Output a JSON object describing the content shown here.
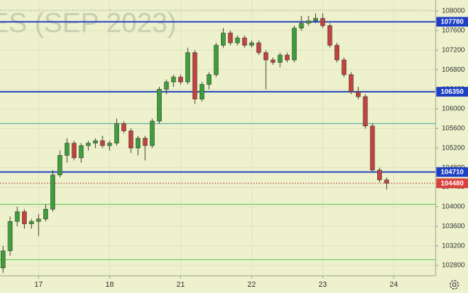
{
  "chart_data": {
    "type": "candlestick",
    "watermark": "ES (SEP 2023)",
    "x": [
      -0.5,
      -0.4,
      -0.3,
      -0.2,
      -0.1,
      0.0,
      0.1,
      0.2,
      0.3,
      0.4,
      0.5,
      0.6,
      0.7,
      0.8,
      0.9,
      1.0,
      1.1,
      1.2,
      1.3,
      1.4,
      1.5,
      1.6,
      1.7,
      1.8,
      1.9,
      2.0,
      2.1,
      2.2,
      2.3,
      2.4,
      2.5,
      2.6,
      2.7,
      2.8,
      2.9,
      3.0,
      3.1,
      3.2,
      3.3,
      3.4,
      3.5,
      3.6,
      3.7,
      3.8,
      3.9,
      4.0,
      4.1,
      4.2,
      4.3,
      4.4,
      4.5,
      4.6,
      4.7,
      4.8,
      4.9
    ],
    "open": [
      102750,
      103100,
      103700,
      103900,
      103650,
      103700,
      103750,
      103950,
      104650,
      105050,
      105300,
      105000,
      105250,
      105300,
      105350,
      105250,
      105300,
      105700,
      105550,
      105200,
      105400,
      105250,
      105750,
      106400,
      106550,
      106650,
      106550,
      107150,
      106200,
      106500,
      106700,
      107300,
      107550,
      107350,
      107450,
      107300,
      107350,
      107150,
      107000,
      106950,
      107100,
      107000,
      107650,
      107750,
      107800,
      107850,
      107700,
      107300,
      107000,
      106700,
      106350,
      106250,
      105650,
      104750,
      104550
    ],
    "high": [
      103200,
      103800,
      104000,
      103950,
      103750,
      103850,
      104050,
      104750,
      105150,
      105400,
      105350,
      105300,
      105350,
      105400,
      105450,
      105350,
      105800,
      105750,
      105600,
      105450,
      105450,
      105800,
      106450,
      106600,
      106700,
      106700,
      107250,
      107200,
      106550,
      106750,
      107350,
      107650,
      107600,
      107500,
      107500,
      107400,
      107400,
      107200,
      107050,
      107150,
      107150,
      107700,
      107900,
      107900,
      107950,
      107950,
      107750,
      107350,
      107050,
      106750,
      106450,
      106300,
      105700,
      104800,
      104600
    ],
    "low": [
      102650,
      103000,
      103600,
      103550,
      103550,
      103400,
      103700,
      103900,
      104600,
      104900,
      104950,
      104900,
      105150,
      105200,
      105200,
      105150,
      105250,
      105500,
      105100,
      105050,
      104950,
      105200,
      105700,
      106300,
      106450,
      106500,
      106500,
      106100,
      106150,
      106400,
      106650,
      107250,
      107300,
      107300,
      107250,
      107250,
      107100,
      106400,
      106900,
      106850,
      106950,
      106950,
      107600,
      107700,
      107750,
      107650,
      107250,
      106950,
      106650,
      106300,
      106200,
      105600,
      104700,
      104500,
      104350
    ],
    "close": [
      103100,
      103700,
      103900,
      103650,
      103700,
      103750,
      103950,
      104650,
      105050,
      105300,
      105000,
      105250,
      105300,
      105350,
      105250,
      105300,
      105700,
      105550,
      105200,
      105400,
      105250,
      105750,
      106400,
      106550,
      106650,
      106550,
      107150,
      106200,
      106500,
      106700,
      107300,
      107550,
      107350,
      107450,
      107300,
      107350,
      107150,
      107000,
      106950,
      107100,
      107000,
      107650,
      107750,
      107800,
      107850,
      107700,
      107300,
      107000,
      106700,
      106350,
      106250,
      105650,
      104750,
      104550,
      104480
    ],
    "up_color": "#3e9e3e",
    "down_color": "#c4423f",
    "xlim": [
      -0.543,
      5.59
    ],
    "xticks": [
      {
        "value": 0,
        "label": "17"
      },
      {
        "value": 1,
        "label": "18"
      },
      {
        "value": 2,
        "label": "21"
      },
      {
        "value": 3,
        "label": "22"
      },
      {
        "value": 4,
        "label": "23"
      },
      {
        "value": 5,
        "label": "24"
      }
    ],
    "ylim": [
      102590,
      108225
    ],
    "yticks": [
      102800,
      103200,
      103600,
      104000,
      104400,
      104800,
      105200,
      105600,
      106000,
      106400,
      106800,
      107200,
      107600,
      108000
    ],
    "grid": true,
    "levels": [
      {
        "value": 107780,
        "color": "#1e3fc4",
        "style": "major"
      },
      {
        "value": 106350,
        "color": "#1e3fc4",
        "style": "major"
      },
      {
        "value": 104710,
        "color": "#1e3fc4",
        "style": "major"
      },
      {
        "value": 104480,
        "color": "#d9413c",
        "style": "price"
      },
      {
        "value": 105700,
        "color": "#3aa3a0",
        "style": "minor"
      },
      {
        "value": 104050,
        "color": "#4cc24c",
        "style": "minor"
      },
      {
        "value": 102920,
        "color": "#4cc24c",
        "style": "minor"
      },
      {
        "value": 108020,
        "color": "#9a9a9a",
        "style": "dotted"
      }
    ]
  }
}
